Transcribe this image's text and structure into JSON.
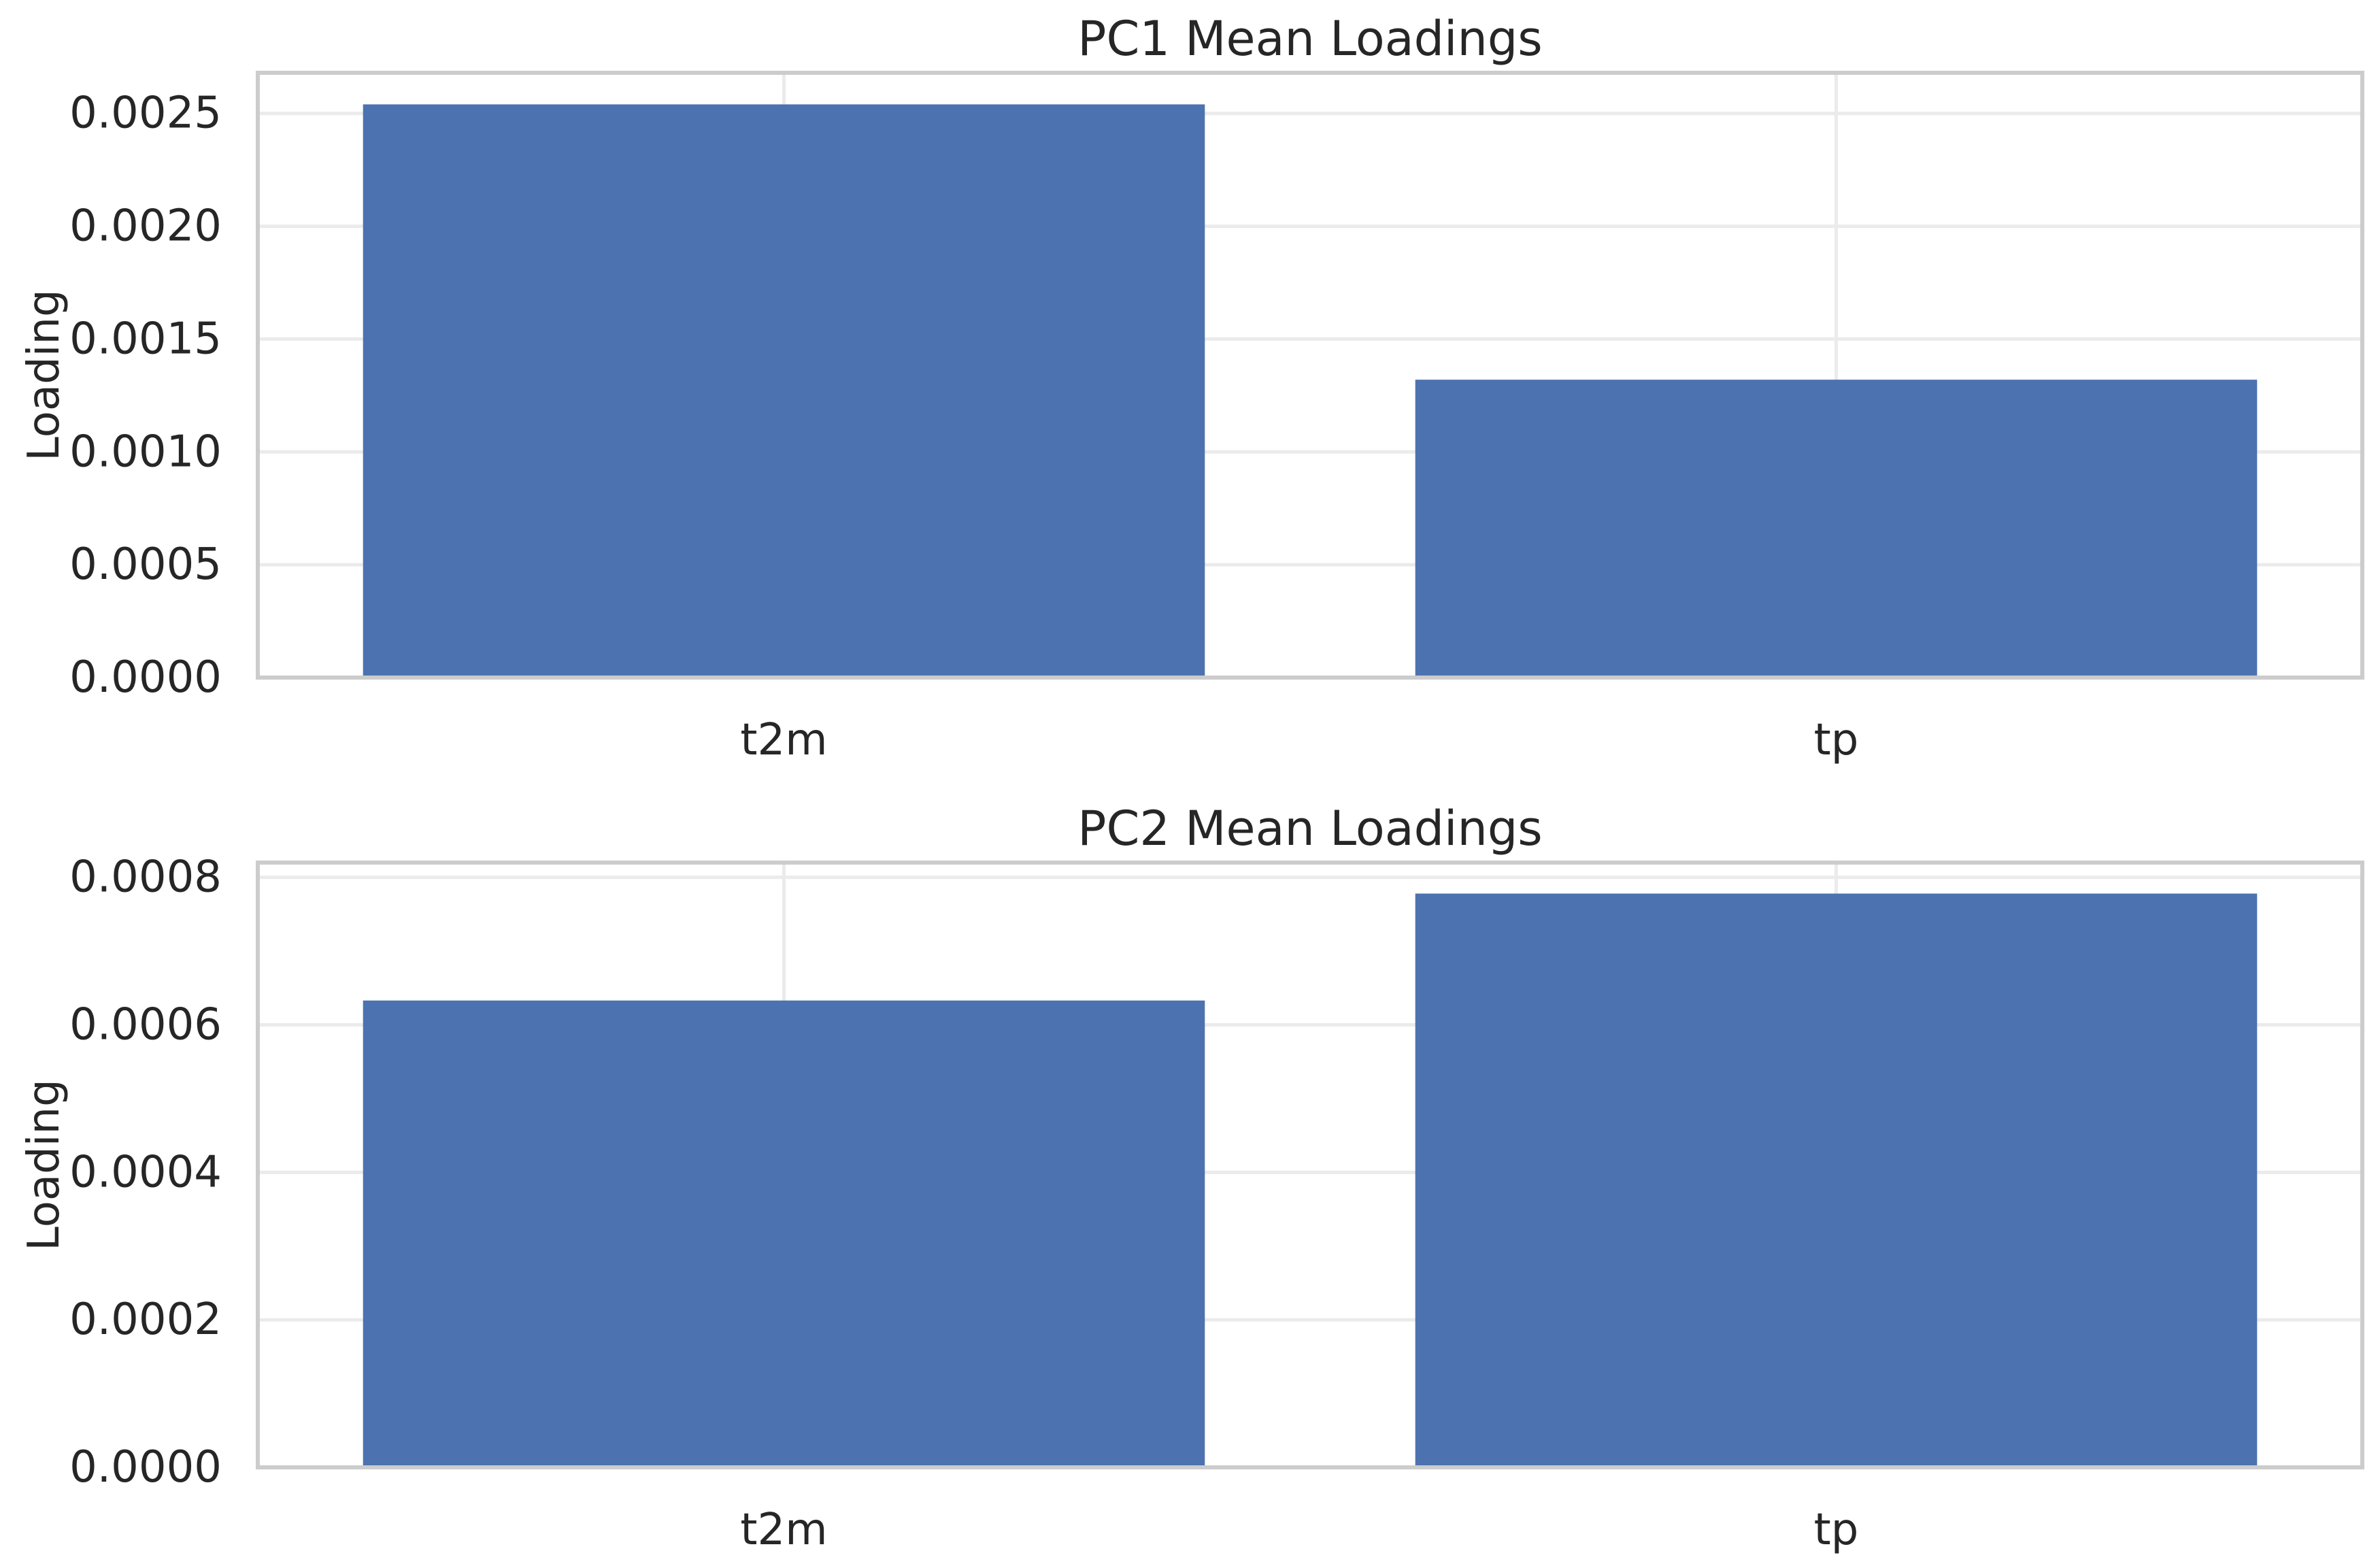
{
  "colors": {
    "bar": "#4c72b0",
    "frame": "#cccccc",
    "grid": "#ebebeb",
    "text": "#262626",
    "background": "#ffffff"
  },
  "chart_data": [
    {
      "type": "bar",
      "title": "PC1 Mean Loadings",
      "xlabel": "",
      "ylabel": "Loading",
      "categories": [
        "t2m",
        "tp"
      ],
      "values": [
        0.00254,
        0.00132
      ],
      "ylim": [
        0,
        0.00268
      ],
      "yticks": [
        0,
        0.0005,
        0.001,
        0.0015,
        0.002,
        0.0025
      ],
      "ytick_labels": [
        "0.0000",
        "0.0005",
        "0.0010",
        "0.0015",
        "0.0020",
        "0.0025"
      ],
      "grid": true,
      "legend": "none"
    },
    {
      "type": "bar",
      "title": "PC2 Mean Loadings",
      "xlabel": "",
      "ylabel": "Loading",
      "categories": [
        "t2m",
        "tp"
      ],
      "values": [
        0.000633,
        0.000778
      ],
      "ylim": [
        0,
        0.00082
      ],
      "yticks": [
        0,
        0.0002,
        0.0004,
        0.0006,
        0.0008
      ],
      "ytick_labels": [
        "0.0000",
        "0.0002",
        "0.0004",
        "0.0006",
        "0.0008"
      ],
      "grid": true,
      "legend": "none"
    }
  ]
}
